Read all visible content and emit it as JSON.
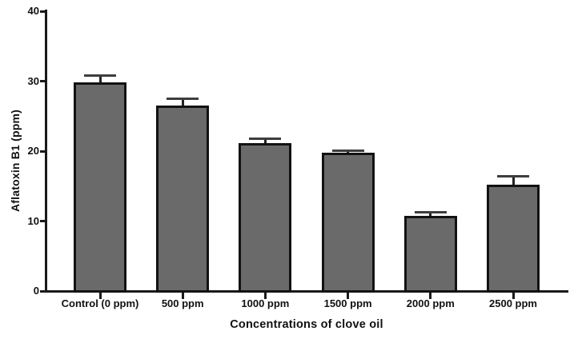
{
  "figure": {
    "background": "#ffffff"
  },
  "chart_data": {
    "type": "bar",
    "title": "",
    "xlabel": "Concentrations of clove oil",
    "ylabel": "Aflatoxin B1 (ppm)",
    "categories": [
      "Control (0 ppm)",
      "500 ppm",
      "1000 ppm",
      "1500 ppm",
      "2000 ppm",
      "2500 ppm"
    ],
    "values": [
      29.8,
      26.5,
      21.2,
      19.8,
      10.7,
      15.2
    ],
    "errors_upper": [
      1.0,
      1.0,
      0.6,
      0.3,
      0.6,
      1.2
    ],
    "error_style": "upper-cap",
    "y_ticks": [
      0,
      10,
      20,
      30,
      40
    ],
    "ylim": [
      0,
      40
    ],
    "grid": false,
    "legend": "none",
    "bar_fill": "#6a6a6a",
    "bar_border": "#121212",
    "axis_color": "#1a1a1a",
    "error_color": "#3d3d3d",
    "text_color": "#111111"
  }
}
